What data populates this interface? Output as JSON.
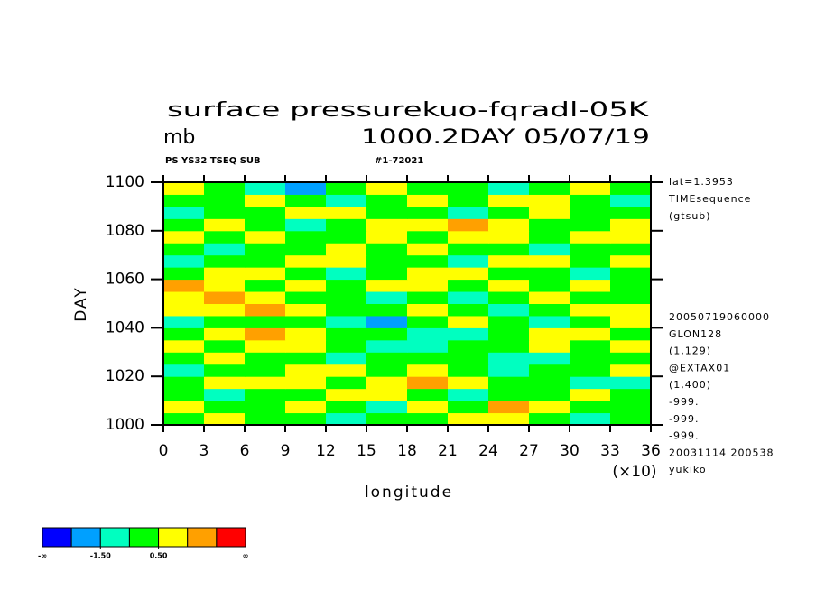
{
  "chart_data": {
    "type": "heatmap",
    "title": "surface pressurekuo-fqradl-05K",
    "units": "mb",
    "subtitle": "1000.2DAY 05/07/19",
    "header_left": "PS YS32 TSEQ SUB",
    "header_right": "#1-72021",
    "xlabel": "longitude",
    "ylabel": "DAY",
    "x_multiplier": "(×10)",
    "xlim": [
      0,
      36
    ],
    "xticks": [
      0,
      3,
      6,
      9,
      12,
      15,
      18,
      21,
      24,
      27,
      30,
      33,
      36
    ],
    "ylim": [
      1000,
      1100
    ],
    "yticks": [
      1000,
      1020,
      1040,
      1060,
      1080,
      1100
    ],
    "notes_top": [
      "lat=1.3953",
      "TIMEsequence",
      "(gtsub)"
    ],
    "notes_bottom": [
      "20050719060000",
      "GLON128",
      "(1,129)",
      "@EXTAX01",
      "(1,400)",
      "-999.",
      "-999.",
      "-999.",
      "20031114 200538",
      "yukiko"
    ],
    "colorbar": {
      "colors": [
        "#0000ff",
        "#00a0ff",
        "#00ffc0",
        "#00ff00",
        "#ffff00",
        "#ffa000",
        "#ff0000"
      ],
      "levels": [
        -2.5,
        -1.5,
        -0.5,
        0.5,
        1.5,
        2.5
      ],
      "low_label": "-∞",
      "high_label": "∞",
      "ticks": [
        {
          "value": -1.5,
          "label": "-1.50"
        },
        {
          "value": 0.5,
          "label": "0.50"
        }
      ]
    },
    "z": [
      [
        0,
        1,
        0,
        0,
        -1,
        0,
        0,
        1,
        1,
        0,
        -1,
        0
      ],
      [
        1,
        0,
        0,
        1,
        0,
        -1,
        1,
        0,
        2,
        1,
        0,
        0
      ],
      [
        0,
        -1,
        0,
        0,
        1,
        1,
        0,
        -1,
        0,
        0,
        1,
        0
      ],
      [
        0,
        1,
        1,
        1,
        0,
        1,
        2,
        1,
        0,
        0,
        -1,
        -1
      ],
      [
        -1,
        0,
        0,
        1,
        1,
        0,
        1,
        0,
        -1,
        0,
        0,
        1
      ],
      [
        0,
        1,
        0,
        0,
        -1,
        0,
        0,
        0,
        -1,
        -1,
        0,
        0
      ],
      [
        1,
        0,
        1,
        1,
        0,
        -1,
        -1,
        0,
        0,
        1,
        0,
        1
      ],
      [
        0,
        1,
        2,
        1,
        0,
        0,
        -1,
        -1,
        0,
        1,
        1,
        0
      ],
      [
        -1,
        0,
        0,
        0,
        -1,
        -2,
        0,
        1,
        0,
        -1,
        0,
        1
      ],
      [
        1,
        1,
        2,
        1,
        0,
        0,
        1,
        0,
        -1,
        0,
        1,
        1
      ],
      [
        1,
        2,
        1,
        0,
        0,
        -1,
        0,
        -1,
        0,
        1,
        0,
        0
      ],
      [
        2,
        1,
        0,
        1,
        0,
        1,
        1,
        0,
        1,
        0,
        1,
        0
      ],
      [
        0,
        1,
        1,
        0,
        -1,
        0,
        1,
        1,
        0,
        0,
        -1,
        0
      ],
      [
        -1,
        0,
        0,
        1,
        1,
        0,
        0,
        -1,
        1,
        1,
        0,
        1
      ],
      [
        0,
        -1,
        0,
        0,
        1,
        0,
        1,
        0,
        0,
        -1,
        0,
        0
      ],
      [
        1,
        0,
        1,
        0,
        0,
        1,
        0,
        1,
        1,
        0,
        1,
        1
      ],
      [
        0,
        1,
        0,
        -1,
        0,
        1,
        1,
        2,
        1,
        0,
        0,
        1
      ],
      [
        -1,
        0,
        0,
        1,
        1,
        0,
        0,
        -1,
        0,
        1,
        0,
        0
      ],
      [
        0,
        0,
        1,
        0,
        -1,
        0,
        1,
        0,
        1,
        1,
        0,
        -1
      ],
      [
        1,
        0,
        -1,
        -2,
        0,
        1,
        0,
        0,
        -1,
        0,
        1,
        0
      ]
    ]
  }
}
